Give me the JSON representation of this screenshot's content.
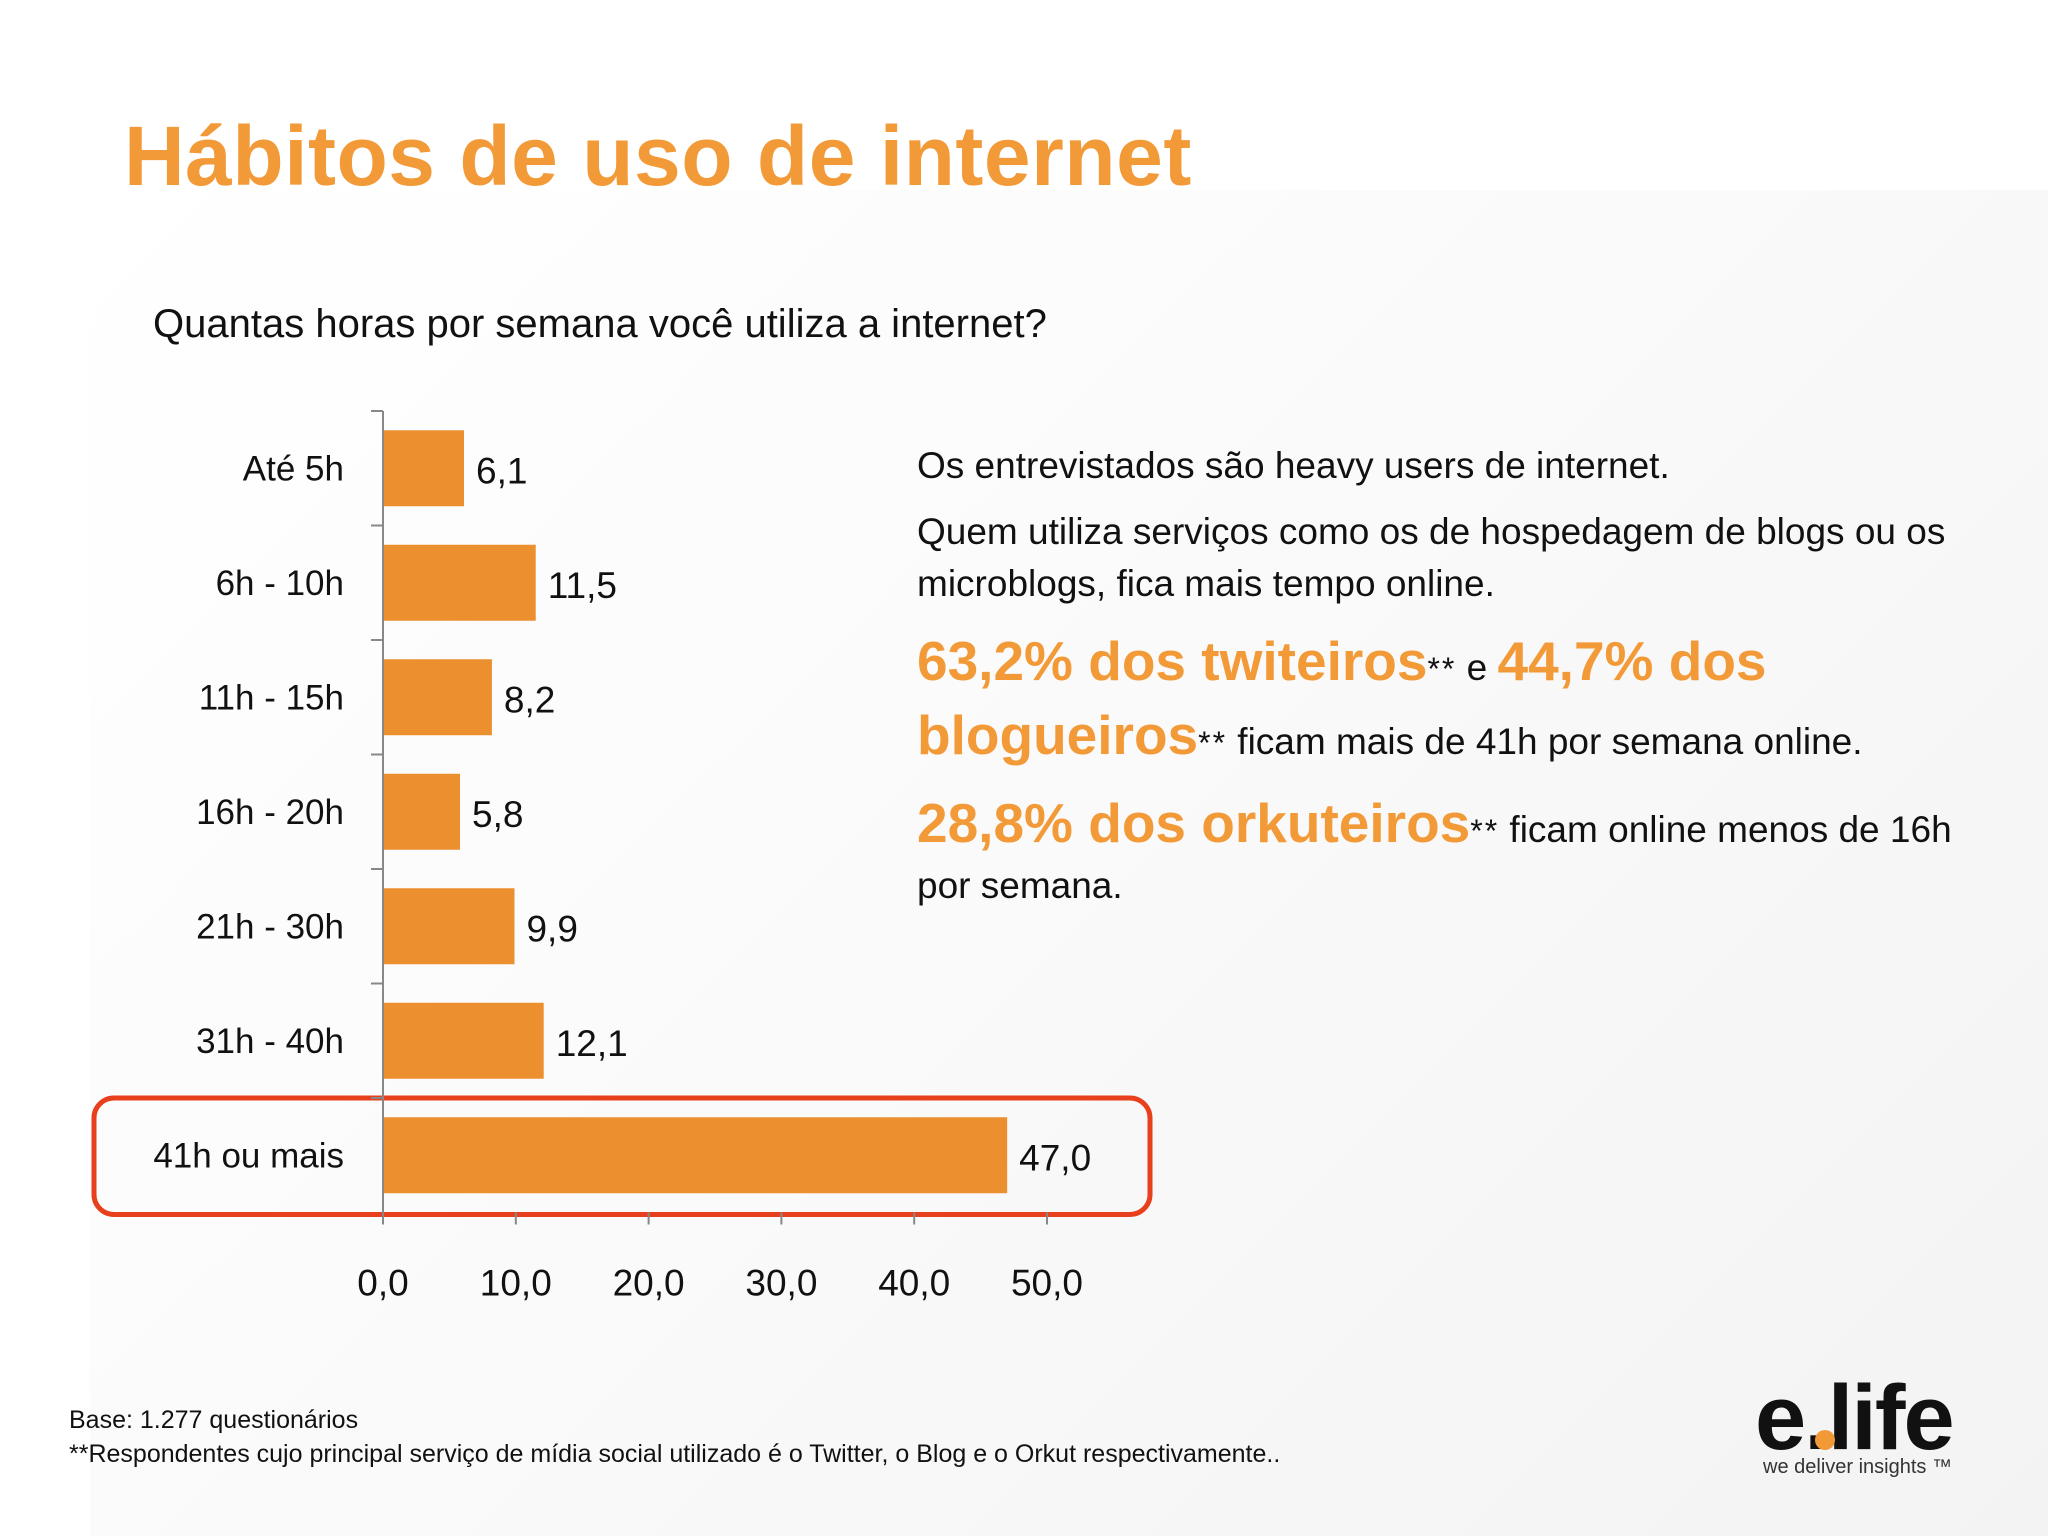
{
  "title": "Hábitos de uso de internet",
  "question": "Quantas horas por semana você utiliza a internet?",
  "chart_data": {
    "type": "bar",
    "orientation": "horizontal",
    "categories": [
      "Até 5h",
      "6h - 10h",
      "11h - 15h",
      "16h - 20h",
      "21h - 30h",
      "31h - 40h",
      "41h ou mais"
    ],
    "values": [
      6.1,
      11.5,
      8.2,
      5.8,
      9.9,
      12.1,
      47.0
    ],
    "value_labels": [
      "6,1",
      "11,5",
      "8,2",
      "5,8",
      "9,9",
      "12,1",
      "47,0"
    ],
    "x_ticks": [
      "0,0",
      "10,0",
      "20,0",
      "30,0",
      "40,0",
      "50,0"
    ],
    "xlim": [
      0,
      50
    ],
    "highlighted_category": "41h ou mais",
    "bar_color": "#ec8f2e",
    "highlight_color": "#e8401c",
    "grid": false
  },
  "text": {
    "p1": "Os entrevistados são heavy users de internet.",
    "p2": "Quem utiliza serviços como os de hospedagem de blogs ou os microblogs, fica mais tempo online.",
    "p3_hl1": "63,2% dos twiteiros",
    "p3_star1": "**",
    "p3_mid": " e ",
    "p3_hl2": "44,7% dos blogueiros",
    "p3_star2": "**",
    "p3_end": "  ficam mais de 41h por semana online.",
    "p4_hl": "28,8% dos orkuteiros",
    "p4_star": "**",
    "p4_end": "  ficam online menos de 16h por semana."
  },
  "footer": {
    "base": "Base: 1.277 questionários",
    "note": "**Respondentes cujo principal serviço de mídia social utilizado é o Twitter, o Blog e o Orkut respectivamente.."
  },
  "logo": {
    "wordmark": "e.life",
    "tagline": "we deliver insights ™"
  },
  "colors": {
    "accent": "#f39a38",
    "bar": "#ec8f2e",
    "highlight_box": "#e8401c"
  }
}
